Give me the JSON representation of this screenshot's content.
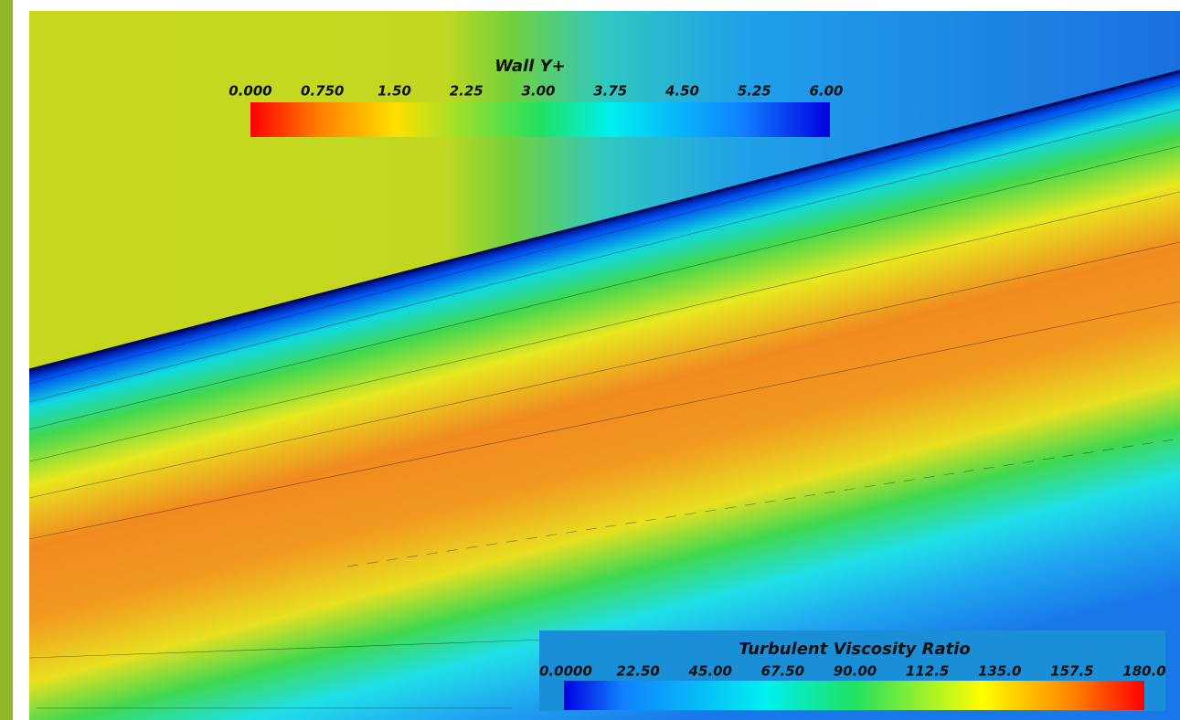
{
  "wall_y_plus": {
    "title": "Wall Y+",
    "labels": [
      "0.000",
      "0.750",
      "1.50",
      "2.25",
      "3.00",
      "3.75",
      "4.50",
      "5.25",
      "6.00"
    ]
  },
  "turbulent_viscosity_ratio": {
    "title": "Turbulent Viscosity Ratio",
    "labels": [
      "0.0000",
      "22.50",
      "45.00",
      "67.50",
      "90.00",
      "112.5",
      "135.0",
      "157.5",
      "180.0"
    ]
  }
}
